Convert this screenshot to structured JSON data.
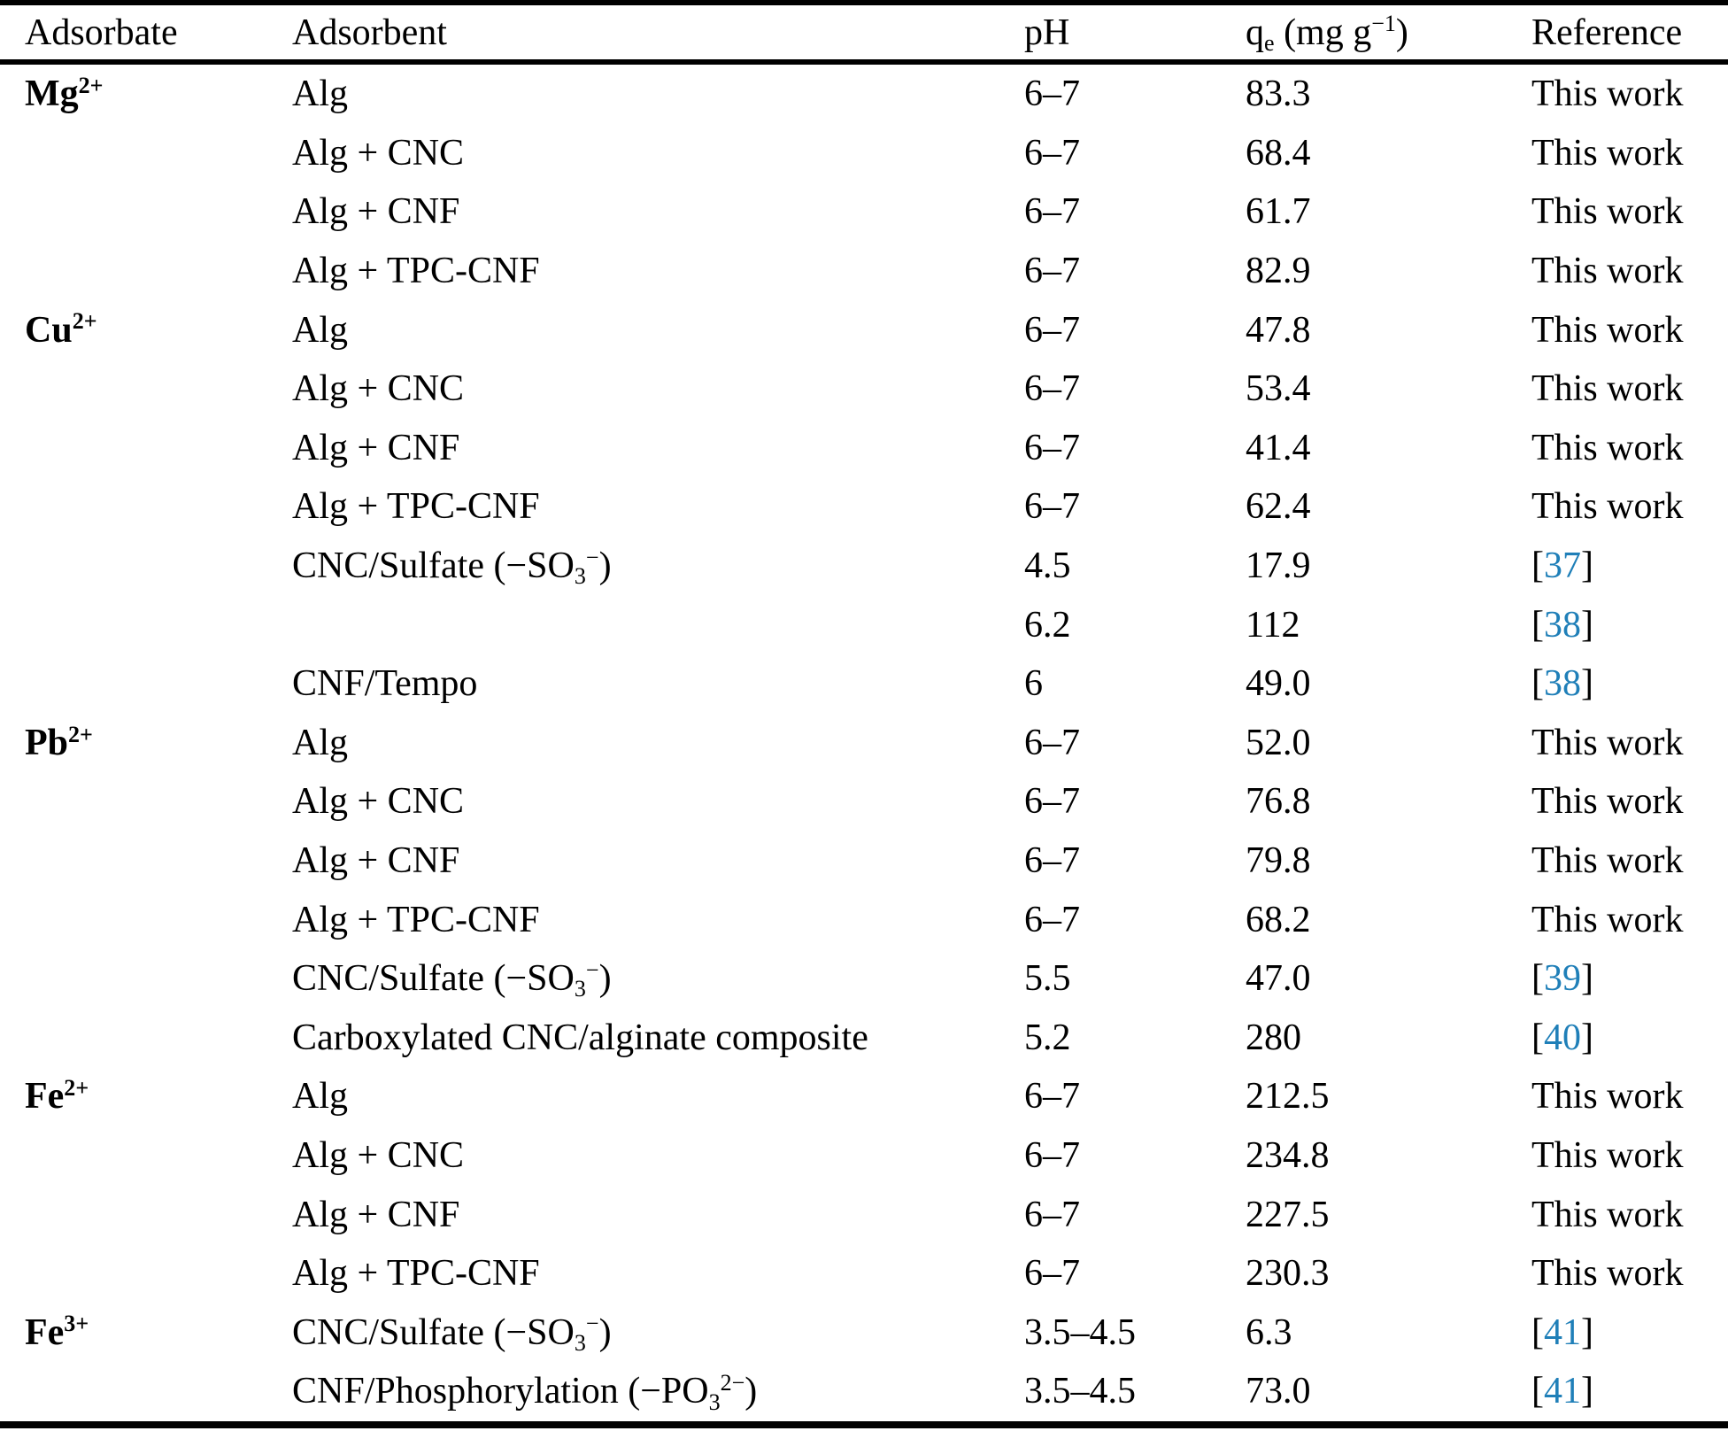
{
  "meta": {
    "background_color": "#ffffff",
    "text_color": "#000000",
    "cite_color": "#1f7fb8"
  },
  "header": {
    "adsorbate": "Adsorbate",
    "adsorbent": "Adsorbent",
    "ph": "pH",
    "qe": {
      "base": "q",
      "sub": "e",
      "mid": " (mg g",
      "sup": "−1",
      "end": ")"
    }
  },
  "citation_format": {
    "bracket_open": "[",
    "bracket_close": "]"
  },
  "rows": [
    {
      "ion": {
        "base": "Mg",
        "sup": "2+"
      },
      "adsorbent": [
        {
          "t": "Alg"
        }
      ],
      "ph": "6–7",
      "qe": "83.3",
      "ref": {
        "work": "This work"
      }
    },
    {
      "ion": null,
      "adsorbent": [
        {
          "t": "Alg + CNC"
        }
      ],
      "ph": "6–7",
      "qe": "68.4",
      "ref": {
        "work": "This work"
      }
    },
    {
      "ion": null,
      "adsorbent": [
        {
          "t": "Alg + CNF"
        }
      ],
      "ph": "6–7",
      "qe": "61.7",
      "ref": {
        "work": "This work"
      }
    },
    {
      "ion": null,
      "adsorbent": [
        {
          "t": "Alg + TPC-CNF"
        }
      ],
      "ph": "6–7",
      "qe": "82.9",
      "ref": {
        "work": "This work"
      }
    },
    {
      "ion": {
        "base": "Cu",
        "sup": "2+"
      },
      "adsorbent": [
        {
          "t": "Alg"
        }
      ],
      "ph": "6–7",
      "qe": "47.8",
      "ref": {
        "work": "This work"
      }
    },
    {
      "ion": null,
      "adsorbent": [
        {
          "t": "Alg + CNC"
        }
      ],
      "ph": "6–7",
      "qe": "53.4",
      "ref": {
        "work": "This work"
      }
    },
    {
      "ion": null,
      "adsorbent": [
        {
          "t": "Alg + CNF"
        }
      ],
      "ph": "6–7",
      "qe": "41.4",
      "ref": {
        "work": "This work"
      }
    },
    {
      "ion": null,
      "adsorbent": [
        {
          "t": "Alg + TPC-CNF"
        }
      ],
      "ph": "6–7",
      "qe": "62.4",
      "ref": {
        "work": "This work"
      }
    },
    {
      "ion": null,
      "adsorbent": [
        {
          "t": "CNC/Sulfate (−SO"
        },
        {
          "sub": "3"
        },
        {
          "sup": "−"
        },
        {
          "t": ")"
        }
      ],
      "ph": "4.5",
      "qe": "17.9",
      "ref": {
        "cite": "37"
      }
    },
    {
      "ion": null,
      "adsorbent": [],
      "ph": "6.2",
      "qe": "112",
      "ref": {
        "cite": "38"
      }
    },
    {
      "ion": null,
      "adsorbent": [
        {
          "t": "CNF/Tempo"
        }
      ],
      "ph": "6",
      "qe": "49.0",
      "ref": {
        "cite": "38"
      }
    },
    {
      "ion": {
        "base": "Pb",
        "sup": "2+"
      },
      "adsorbent": [
        {
          "t": "Alg"
        }
      ],
      "ph": "6–7",
      "qe": "52.0",
      "ref": {
        "work": "This work"
      }
    },
    {
      "ion": null,
      "adsorbent": [
        {
          "t": "Alg + CNC"
        }
      ],
      "ph": "6–7",
      "qe": "76.8",
      "ref": {
        "work": "This work"
      }
    },
    {
      "ion": null,
      "adsorbent": [
        {
          "t": "Alg + CNF"
        }
      ],
      "ph": "6–7",
      "qe": "79.8",
      "ref": {
        "work": "This work"
      }
    },
    {
      "ion": null,
      "adsorbent": [
        {
          "t": "Alg + TPC-CNF"
        }
      ],
      "ph": "6–7",
      "qe": "68.2",
      "ref": {
        "work": "This work"
      }
    },
    {
      "ion": null,
      "adsorbent": [
        {
          "t": "CNC/Sulfate (−SO"
        },
        {
          "sub": "3"
        },
        {
          "sup": "−"
        },
        {
          "t": ")"
        }
      ],
      "ph": "5.5",
      "qe": "47.0",
      "ref": {
        "cite": "39"
      }
    },
    {
      "ion": null,
      "adsorbent": [
        {
          "t": "Carboxylated CNC/alginate composite"
        }
      ],
      "ph": "5.2",
      "qe": "280",
      "ref": {
        "cite": "40"
      }
    },
    {
      "ion": {
        "base": "Fe",
        "sup": "2+"
      },
      "adsorbent": [
        {
          "t": "Alg"
        }
      ],
      "ph": "6–7",
      "qe": "212.5",
      "ref": {
        "work": "This work"
      }
    },
    {
      "ion": null,
      "adsorbent": [
        {
          "t": "Alg + CNC"
        }
      ],
      "ph": "6–7",
      "qe": "234.8",
      "ref": {
        "work": "This work"
      }
    },
    {
      "ion": null,
      "adsorbent": [
        {
          "t": "Alg + CNF"
        }
      ],
      "ph": "6–7",
      "qe": "227.5",
      "ref": {
        "work": "This work"
      }
    },
    {
      "ion": null,
      "adsorbent": [
        {
          "t": "Alg + TPC-CNF"
        }
      ],
      "ph": "6–7",
      "qe": "230.3",
      "ref": {
        "work": "This work"
      }
    },
    {
      "ion": {
        "base": "Fe",
        "sup": "3+"
      },
      "adsorbent": [
        {
          "t": "CNC/Sulfate (−SO"
        },
        {
          "sub": "3"
        },
        {
          "sup": "−"
        },
        {
          "t": ")"
        }
      ],
      "ph": "3.5–4.5",
      "qe": "6.3",
      "ref": {
        "cite": "41"
      }
    },
    {
      "ion": null,
      "adsorbent": [
        {
          "t": "CNF/Phosphorylation (−PO"
        },
        {
          "sub": "3"
        },
        {
          "sup": "2−"
        },
        {
          "t": ")"
        }
      ],
      "ph": "3.5–4.5",
      "qe": "73.0",
      "ref": {
        "cite": "41"
      }
    }
  ]
}
